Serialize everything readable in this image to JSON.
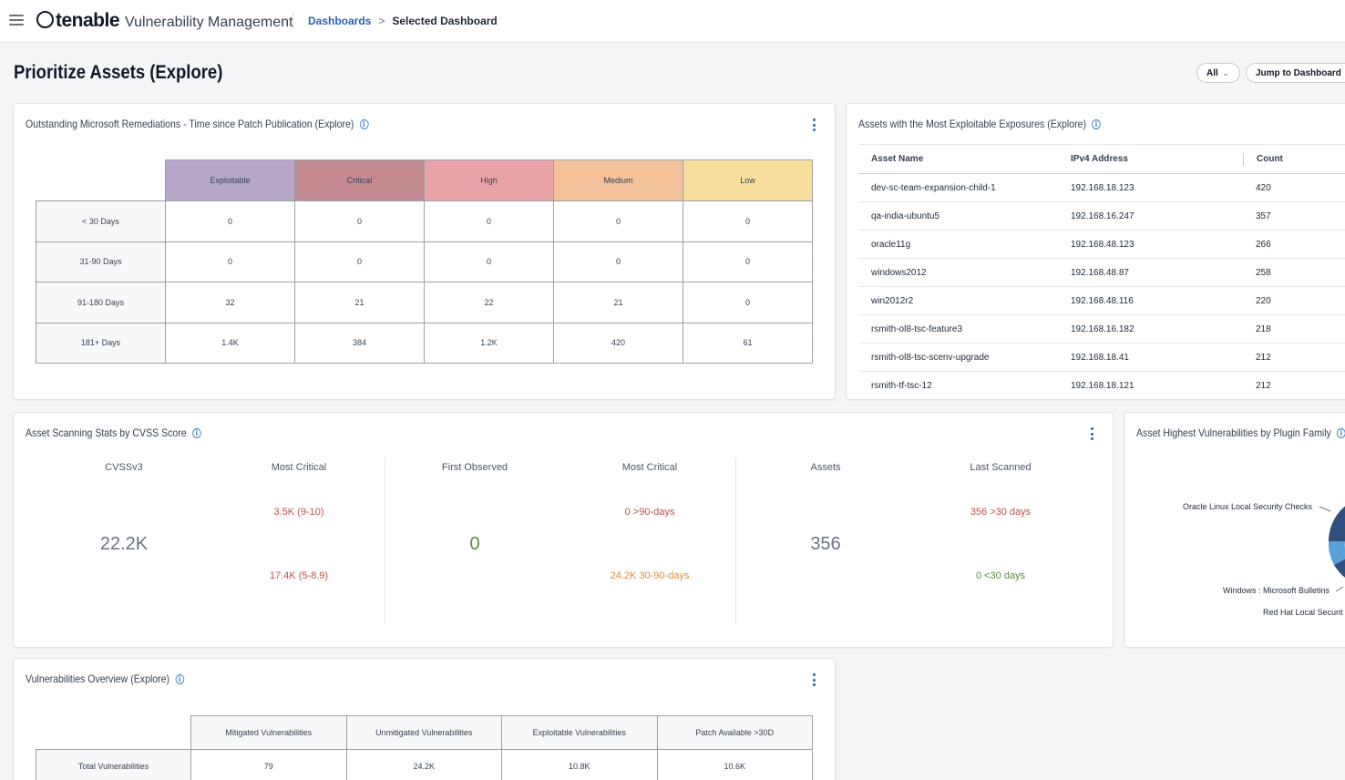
{
  "header": {
    "brand": "tenable",
    "product": "Vulnerability Management",
    "breadcrumb": {
      "link": "Dashboards",
      "separator": ">",
      "current": "Selected Dashboard"
    }
  },
  "page": {
    "title": "Prioritize Assets (Explore)",
    "filter_label": "All",
    "jump_label": "Jump to Dashboard"
  },
  "remediations_panel": {
    "title": "Outstanding Microsoft Remediations - Time since Patch Publication (Explore)",
    "columns": [
      "Exploitable",
      "Critical",
      "High",
      "Medium",
      "Low"
    ],
    "rows": [
      {
        "label": "< 30 Days",
        "values": [
          "0",
          "0",
          "0",
          "0",
          "0"
        ]
      },
      {
        "label": "31-90 Days",
        "values": [
          "0",
          "0",
          "0",
          "0",
          "0"
        ]
      },
      {
        "label": "91-180 Days",
        "values": [
          "32",
          "21",
          "22",
          "21",
          "0"
        ]
      },
      {
        "label": "181+ Days",
        "values": [
          "1.4K",
          "384",
          "1.2K",
          "420",
          "61"
        ]
      }
    ],
    "colors": {
      "exploitable": "#b6a7c9",
      "critical": "#c48a92",
      "high": "#e9a4a7",
      "medium": "#f3c29b",
      "low": "#f7de9d"
    }
  },
  "exposures_panel": {
    "title": "Assets with the Most Exploitable Exposures (Explore)",
    "columns": [
      "Asset Name",
      "IPv4 Address",
      "Count"
    ],
    "rows": [
      {
        "name": "dev-sc-team-expansion-child-1",
        "ip": "192.168.18.123",
        "count": "420"
      },
      {
        "name": "qa-india-ubuntu5",
        "ip": "192.168.16.247",
        "count": "357"
      },
      {
        "name": "oracle11g",
        "ip": "192.168.48.123",
        "count": "266"
      },
      {
        "name": "windows2012",
        "ip": "192.168.48.87",
        "count": "258"
      },
      {
        "name": "win2012r2",
        "ip": "192.168.48.116",
        "count": "220"
      },
      {
        "name": "rsmith-ol8-tsc-feature3",
        "ip": "192.168.16.182",
        "count": "218"
      },
      {
        "name": "rsmith-ol8-tsc-scenv-upgrade",
        "ip": "192.168.18.41",
        "count": "212"
      },
      {
        "name": "rsmith-tf-tsc-12",
        "ip": "192.168.18.121",
        "count": "212"
      }
    ]
  },
  "scanning_panel": {
    "title": "Asset Scanning Stats by CVSS Score",
    "groups": [
      {
        "left_head": "CVSSv3",
        "big": "22.2K",
        "right_head": "Most Critical",
        "top": "3.5K (9-10)",
        "bottom": "17.4K (5-8.9)"
      },
      {
        "left_head": "First Observed",
        "big": "0",
        "right_head": "Most Critical",
        "top": "0 >90-days",
        "bottom": "24.2K 30-90-days"
      },
      {
        "left_head": "Assets",
        "big": "356",
        "right_head": "Last Scanned",
        "top": "356 >30 days",
        "bottom": "0 <30 days"
      }
    ],
    "colors": {
      "neutral": "#6b7280",
      "red": "#c0504d",
      "orange": "#e08a3c",
      "green": "#5b8a3a"
    }
  },
  "plugin_panel": {
    "title": "Asset Highest Vulnerabilities by Plugin Family",
    "labels": [
      "Oracle Linux Local Security Checks",
      "Windows : Microsoft Bulletins",
      "Red Hat Local Securit"
    ],
    "colors": [
      "#2f4f7f",
      "#3d6fa8",
      "#5aa1d8"
    ]
  },
  "overview_panel": {
    "title": "Vulnerabilities Overview (Explore)",
    "columns": [
      "Mitigated Vulnerabilities",
      "Unmitigated Vulnerabilities",
      "Exploitable Vulnerabilities",
      "Patch Available >30D"
    ],
    "rows": [
      {
        "label": "Total Vulnerabilities",
        "values": [
          "79",
          "24.2K",
          "10.8K",
          "10.6K"
        ]
      }
    ]
  }
}
